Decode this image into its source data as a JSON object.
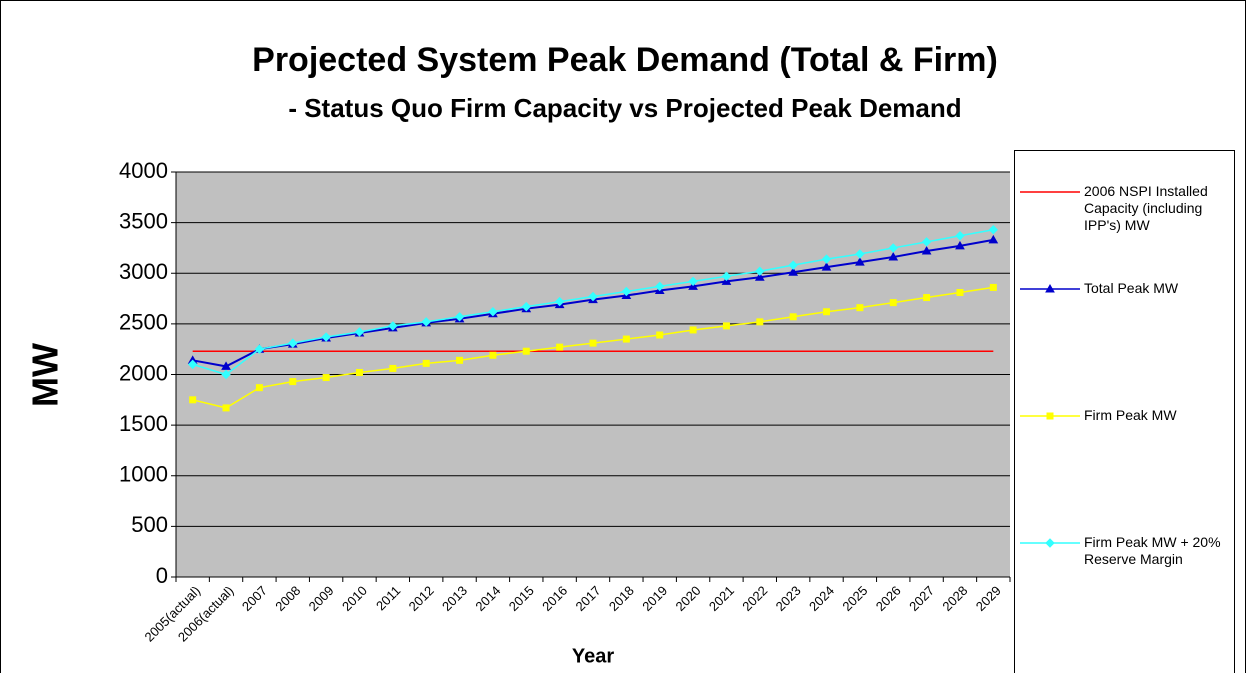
{
  "chart_data": {
    "type": "line",
    "title": "Projected System Peak Demand (Total & Firm)",
    "subtitle": "- Status Quo Firm Capacity vs Projected Peak Demand",
    "x_label": "Year",
    "y_label": "MW",
    "categories": [
      "2005(actual)",
      "2006(actual)",
      "2007",
      "2008",
      "2009",
      "2010",
      "2011",
      "2012",
      "2013",
      "2014",
      "2015",
      "2016",
      "2017",
      "2018",
      "2019",
      "2020",
      "2021",
      "2022",
      "2023",
      "2024",
      "2025",
      "2026",
      "2027",
      "2028",
      "2029"
    ],
    "series": [
      {
        "name": "2006 NSPI Installed Capacity (including IPP's) MW",
        "color": "#ff0000",
        "marker": "none",
        "values": [
          2230,
          2230,
          2230,
          2230,
          2230,
          2230,
          2230,
          2230,
          2230,
          2230,
          2230,
          2230,
          2230,
          2230,
          2230,
          2230,
          2230,
          2230,
          2230,
          2230,
          2230,
          2230,
          2230,
          2230,
          2230
        ]
      },
      {
        "name": "Total Peak MW",
        "color": "#0000cc",
        "marker": "triangle",
        "values": [
          2140,
          2080,
          2250,
          2300,
          2360,
          2410,
          2460,
          2510,
          2550,
          2600,
          2650,
          2690,
          2740,
          2780,
          2830,
          2870,
          2920,
          2960,
          3010,
          3060,
          3110,
          3160,
          3220,
          3270,
          3330
        ]
      },
      {
        "name": "Firm Peak MW",
        "color": "#ffff00",
        "marker": "square",
        "values": [
          1750,
          1670,
          1870,
          1930,
          1970,
          2020,
          2060,
          2110,
          2140,
          2190,
          2230,
          2270,
          2310,
          2350,
          2390,
          2440,
          2480,
          2520,
          2570,
          2620,
          2660,
          2710,
          2760,
          2810,
          2860
        ]
      },
      {
        "name": "Firm Peak MW + 20% Reserve Margin",
        "color": "#33ffff",
        "marker": "diamond",
        "values": [
          2100,
          2000,
          2250,
          2310,
          2370,
          2420,
          2480,
          2520,
          2570,
          2620,
          2670,
          2720,
          2770,
          2820,
          2870,
          2920,
          2970,
          3020,
          3080,
          3140,
          3190,
          3250,
          3310,
          3370,
          3430
        ]
      }
    ],
    "ylim": [
      0,
      4000
    ],
    "yticks": [
      0,
      500,
      1000,
      1500,
      2000,
      2500,
      3000,
      3500,
      4000
    ],
    "grid": true,
    "plot_background": "#c0c0c0",
    "legend": "right"
  }
}
